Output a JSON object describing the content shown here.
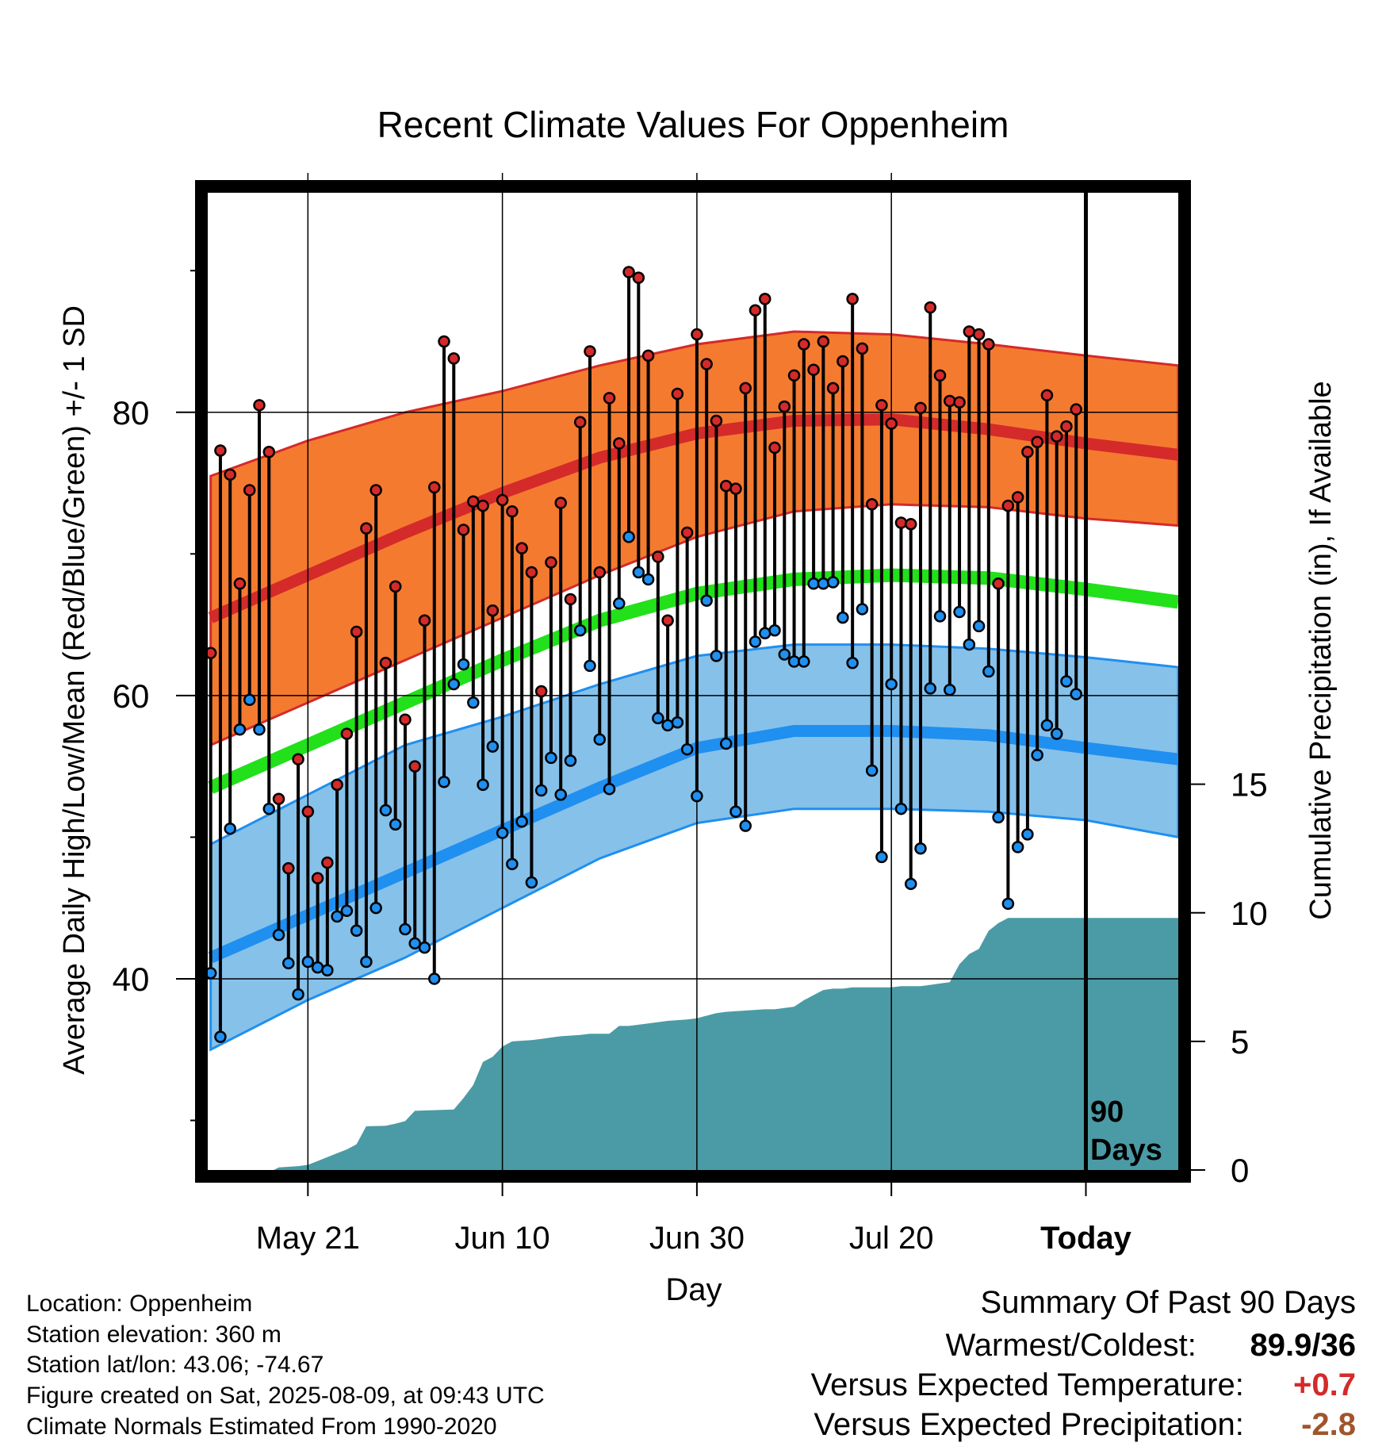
{
  "chart_data": {
    "type": "line",
    "title": "Recent Climate Values For Oppenheim",
    "xlabel": "Day",
    "ylabel": "Average Daily High/Low/Mean (Red/Blue/Green) +/- 1 SD",
    "y2label": "Cumulative Precipitation (in), If Available",
    "x_tick_labels": [
      "May 21",
      "Jun 10",
      "Jun 30",
      "Jul 20",
      "Today"
    ],
    "x_tick_days": [
      10,
      30,
      50,
      70,
      90
    ],
    "y_ticks": [
      "40",
      "60",
      "80"
    ],
    "y2_ticks": [
      "0",
      "5",
      "10",
      "15"
    ],
    "ylim": [
      26.5,
      95.5
    ],
    "y2lim": [
      0,
      38
    ],
    "xlim": [
      -0.3,
      99.5
    ],
    "today_marker_label_1": "90",
    "today_marker_label_2": "Days",
    "colors": {
      "high_band": "#f47a30",
      "high_line": "#d42a2a",
      "low_band": "#86c1ea",
      "low_line": "#1f8ff0",
      "mean_line": "#22e01a",
      "precip_fill": "#4a9ba5",
      "high_dot": "#d42a2a",
      "low_dot": "#1f8ff0"
    },
    "normal_high_mean": [
      [
        0,
        65.5
      ],
      [
        10,
        68.5
      ],
      [
        20,
        71.5
      ],
      [
        30,
        74.3
      ],
      [
        40,
        76.8
      ],
      [
        50,
        78.5
      ],
      [
        60,
        79.4
      ],
      [
        70,
        79.5
      ],
      [
        80,
        78.8
      ],
      [
        90,
        77.8
      ],
      [
        100,
        77.0
      ]
    ],
    "normal_high_upper": [
      [
        0,
        75.5
      ],
      [
        10,
        78.0
      ],
      [
        20,
        80.0
      ],
      [
        30,
        81.5
      ],
      [
        40,
        83.3
      ],
      [
        50,
        84.8
      ],
      [
        60,
        85.7
      ],
      [
        70,
        85.5
      ],
      [
        80,
        84.8
      ],
      [
        90,
        84.0
      ],
      [
        100,
        83.3
      ]
    ],
    "normal_high_lower": [
      [
        0,
        56.5
      ],
      [
        10,
        59.5
      ],
      [
        20,
        62.5
      ],
      [
        30,
        65.5
      ],
      [
        40,
        68.5
      ],
      [
        50,
        71.2
      ],
      [
        60,
        73.0
      ],
      [
        70,
        73.5
      ],
      [
        80,
        73.3
      ],
      [
        90,
        72.5
      ],
      [
        100,
        72.0
      ]
    ],
    "normal_mean": [
      [
        0,
        53.5
      ],
      [
        10,
        56.5
      ],
      [
        20,
        59.5
      ],
      [
        30,
        62.5
      ],
      [
        40,
        65.3
      ],
      [
        50,
        67.2
      ],
      [
        60,
        68.2
      ],
      [
        70,
        68.5
      ],
      [
        80,
        68.3
      ],
      [
        90,
        67.5
      ],
      [
        100,
        66.6
      ]
    ],
    "normal_low_mean": [
      [
        0,
        41.5
      ],
      [
        10,
        44.5
      ],
      [
        20,
        47.5
      ],
      [
        30,
        50.5
      ],
      [
        40,
        53.5
      ],
      [
        50,
        56.3
      ],
      [
        60,
        57.5
      ],
      [
        70,
        57.5
      ],
      [
        80,
        57.2
      ],
      [
        90,
        56.3
      ],
      [
        100,
        55.5
      ]
    ],
    "normal_low_upper": [
      [
        0,
        49.5
      ],
      [
        10,
        53.0
      ],
      [
        20,
        56.5
      ],
      [
        30,
        58.5
      ],
      [
        40,
        60.8
      ],
      [
        50,
        62.8
      ],
      [
        60,
        63.6
      ],
      [
        70,
        63.6
      ],
      [
        80,
        63.3
      ],
      [
        90,
        62.7
      ],
      [
        100,
        62.0
      ]
    ],
    "normal_low_lower": [
      [
        0,
        35.0
      ],
      [
        10,
        38.5
      ],
      [
        20,
        41.5
      ],
      [
        30,
        45.0
      ],
      [
        40,
        48.5
      ],
      [
        50,
        51.0
      ],
      [
        60,
        52.0
      ],
      [
        70,
        52.0
      ],
      [
        80,
        51.8
      ],
      [
        90,
        51.2
      ],
      [
        100,
        50.0
      ]
    ],
    "daily_highs": [
      63.0,
      77.3,
      75.6,
      67.9,
      74.5,
      80.5,
      77.2,
      52.7,
      47.8,
      55.5,
      51.8,
      47.1,
      48.2,
      53.7,
      57.3,
      64.5,
      71.8,
      74.5,
      62.3,
      67.7,
      58.3,
      55.0,
      65.3,
      74.7,
      85.0,
      83.8,
      71.7,
      73.7,
      73.4,
      66.0,
      73.8,
      73.0,
      70.4,
      68.7,
      60.3,
      69.4,
      73.6,
      66.8,
      79.3,
      84.3,
      68.7,
      81.0,
      77.8,
      89.9,
      89.5,
      84.0,
      69.8,
      65.3,
      81.3,
      71.5,
      85.5,
      83.4,
      79.4,
      74.8,
      74.6,
      81.7,
      87.2,
      88.0,
      77.5,
      80.4,
      82.6,
      84.8,
      83.0,
      85.0,
      81.7,
      83.6,
      88.0,
      84.5,
      73.5,
      80.5,
      79.2,
      72.2,
      72.1,
      80.3,
      87.4,
      82.6,
      80.8,
      80.7,
      85.7,
      85.5,
      84.8,
      67.9,
      73.4,
      74.0,
      77.2,
      77.9,
      81.2,
      78.3,
      79.0,
      80.2
    ],
    "daily_lows": [
      40.4,
      35.9,
      50.6,
      57.6,
      59.7,
      57.6,
      52.0,
      43.1,
      41.1,
      38.9,
      41.2,
      40.8,
      40.6,
      44.4,
      44.8,
      43.4,
      41.2,
      45.0,
      51.9,
      50.9,
      43.5,
      42.5,
      42.2,
      40.0,
      53.9,
      60.8,
      62.2,
      59.5,
      53.7,
      56.4,
      50.3,
      48.1,
      51.1,
      46.8,
      53.3,
      55.6,
      53.0,
      55.4,
      64.6,
      62.1,
      56.9,
      53.4,
      66.5,
      71.2,
      68.7,
      68.2,
      58.4,
      57.9,
      58.1,
      56.2,
      52.9,
      66.7,
      62.8,
      56.6,
      51.8,
      50.8,
      63.8,
      64.4,
      64.6,
      62.9,
      62.4,
      62.4,
      67.9,
      67.9,
      68.0,
      65.5,
      62.3,
      66.1,
      54.7,
      48.6,
      60.8,
      52.0,
      46.7,
      49.2,
      60.5,
      65.6,
      60.4,
      65.9,
      63.6,
      64.9,
      61.7,
      51.4,
      45.3,
      49.3,
      50.2,
      55.8,
      57.9,
      57.3,
      61.0,
      60.1
    ],
    "cumulative_precip": [
      [
        0,
        0
      ],
      [
        6.5,
        0
      ],
      [
        7,
        0.1
      ],
      [
        9,
        0.15
      ],
      [
        10,
        0.2
      ],
      [
        11,
        0.35
      ],
      [
        12,
        0.5
      ],
      [
        13,
        0.65
      ],
      [
        14,
        0.8
      ],
      [
        15,
        1.0
      ],
      [
        16,
        1.7
      ],
      [
        18,
        1.72
      ],
      [
        19,
        1.8
      ],
      [
        20,
        1.9
      ],
      [
        21,
        2.3
      ],
      [
        25,
        2.35
      ],
      [
        26,
        2.8
      ],
      [
        27,
        3.3
      ],
      [
        28,
        4.2
      ],
      [
        29,
        4.4
      ],
      [
        30,
        4.8
      ],
      [
        31,
        5.0
      ],
      [
        33,
        5.05
      ],
      [
        34,
        5.1
      ],
      [
        35,
        5.15
      ],
      [
        36,
        5.2
      ],
      [
        38,
        5.25
      ],
      [
        39,
        5.3
      ],
      [
        40,
        5.3
      ],
      [
        41,
        5.3
      ],
      [
        42,
        5.6
      ],
      [
        43,
        5.6
      ],
      [
        45,
        5.7
      ],
      [
        46,
        5.75
      ],
      [
        47,
        5.8
      ],
      [
        49,
        5.85
      ],
      [
        50,
        5.9
      ],
      [
        51,
        6.0
      ],
      [
        52,
        6.1
      ],
      [
        53,
        6.15
      ],
      [
        55,
        6.2
      ],
      [
        57,
        6.25
      ],
      [
        58,
        6.25
      ],
      [
        59,
        6.3
      ],
      [
        60,
        6.35
      ],
      [
        61,
        6.6
      ],
      [
        62,
        6.8
      ],
      [
        63,
        7.0
      ],
      [
        64,
        7.05
      ],
      [
        65,
        7.05
      ],
      [
        66,
        7.1
      ],
      [
        70,
        7.1
      ],
      [
        71,
        7.15
      ],
      [
        72,
        7.15
      ],
      [
        73,
        7.15
      ],
      [
        74,
        7.2
      ],
      [
        75,
        7.25
      ],
      [
        76,
        7.3
      ],
      [
        77,
        8.0
      ],
      [
        78,
        8.4
      ],
      [
        79,
        8.6
      ],
      [
        80,
        9.3
      ],
      [
        81,
        9.6
      ],
      [
        82,
        9.8
      ],
      [
        90,
        9.8
      ],
      [
        99.5,
        9.8
      ]
    ]
  },
  "info": {
    "location": "Location: Oppenheim",
    "elevation": "Station elevation: 360 m",
    "latlon": "Station lat/lon: 43.06; -74.67",
    "created": "Figure created on Sat, 2025-08-09, at 09:43 UTC",
    "normals": "Climate Normals Estimated From 1990-2020"
  },
  "summary": {
    "title": "Summary Of Past 90 Days",
    "warmest_coldest_label": "Warmest/Coldest:",
    "warmest_coldest_value": "89.9/36",
    "temp_label": "Versus Expected Temperature:",
    "temp_value": "+0.7",
    "temp_color": "#d42a2a",
    "precip_label": "Versus Expected Precipitation:",
    "precip_value": "-2.8",
    "precip_color": "#a0552d"
  }
}
